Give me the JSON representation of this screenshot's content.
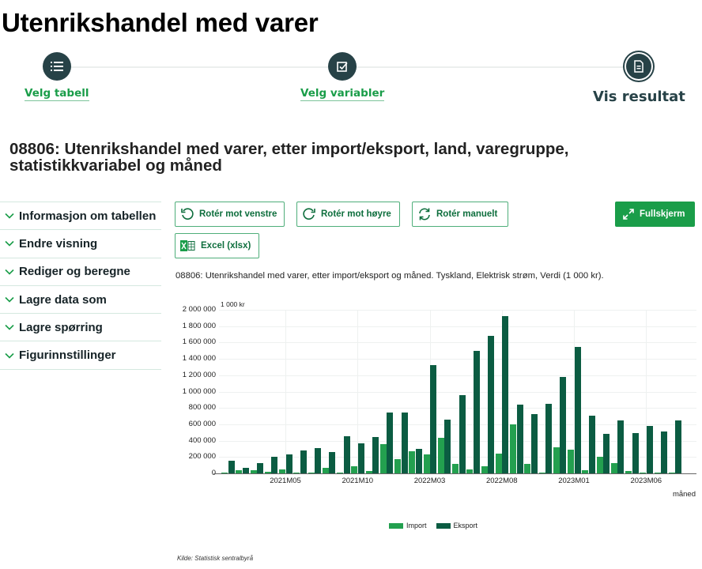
{
  "page": {
    "title": "Utenrikshandel med varer"
  },
  "stepper": {
    "steps": [
      {
        "label": "Velg tabell",
        "icon": "list-icon",
        "state": "done"
      },
      {
        "label": "Velg variabler",
        "icon": "checkbox-icon",
        "state": "done"
      },
      {
        "label": "Vis resultat",
        "icon": "document-icon",
        "state": "current"
      }
    ]
  },
  "table": {
    "title": "08806: Utenrikshandel med varer, etter import/eksport, land, varegruppe, statistikkvariabel og måned"
  },
  "sidebar": {
    "items": [
      {
        "label": "Informasjon om tabellen"
      },
      {
        "label": "Endre visning"
      },
      {
        "label": "Rediger og beregne"
      },
      {
        "label": "Lagre data som"
      },
      {
        "label": "Lagre spørring"
      },
      {
        "label": "Figurinnstillinger"
      }
    ]
  },
  "toolbar": {
    "rotate_left": "Rotér mot venstre",
    "rotate_right": "Rotér mot høyre",
    "rotate_manual": "Rotér manuelt",
    "fullscreen": "Fullskjerm",
    "excel": "Excel (xlsx)"
  },
  "chart": {
    "caption": "08806: Utenrikshandel med varer, etter import/eksport og måned. Tyskland, Elektrisk strøm, Verdi (1 000 kr).",
    "source": "Kilde:  Statistisk sentralbyrå",
    "colors": {
      "import": "#23a04f",
      "eksport": "#0b5c42"
    }
  },
  "chart_data": {
    "type": "bar",
    "title": "08806: Utenrikshandel med varer, etter import/eksport og måned. Tyskland, Elektrisk strøm, Verdi (1 000 kr).",
    "xlabel": "måned",
    "ylabel": "1 000 kr",
    "ylim": [
      0,
      2000000
    ],
    "y_ticks": [
      "0",
      "200 000",
      "400 000",
      "600 000",
      "800 000",
      "1 000 000",
      "1 200 000",
      "1 400 000",
      "1 600 000",
      "1 800 000",
      "2 000 000"
    ],
    "x_tick_labels": [
      "2021M05",
      "2021M10",
      "2022M03",
      "2022M08",
      "2023M01",
      "2023M06"
    ],
    "grid": true,
    "legend_position": "bottom",
    "categories": [
      "2021M01",
      "2021M02",
      "2021M03",
      "2021M04",
      "2021M05",
      "2021M06",
      "2021M07",
      "2021M08",
      "2021M09",
      "2021M10",
      "2021M11",
      "2021M12",
      "2022M01",
      "2022M02",
      "2022M03",
      "2022M04",
      "2022M05",
      "2022M06",
      "2022M07",
      "2022M08",
      "2022M09",
      "2022M10",
      "2022M11",
      "2022M12",
      "2023M01",
      "2023M02",
      "2023M03",
      "2023M04",
      "2023M05",
      "2023M06",
      "2023M07",
      "2023M08"
    ],
    "series": [
      {
        "name": "Import",
        "values": [
          10000,
          40000,
          35000,
          15000,
          45000,
          5000,
          10000,
          65000,
          10000,
          90000,
          28000,
          355000,
          175000,
          270000,
          235000,
          435000,
          120000,
          45000,
          85000,
          240000,
          600000,
          115000,
          5000,
          320000,
          290000,
          40000,
          200000,
          130000,
          30000,
          10000,
          10000,
          5000
        ]
      },
      {
        "name": "Eksport",
        "values": [
          150000,
          70000,
          125000,
          205000,
          230000,
          285000,
          305000,
          265000,
          455000,
          365000,
          440000,
          745000,
          740000,
          300000,
          1320000,
          660000,
          960000,
          1500000,
          1680000,
          1920000,
          840000,
          725000,
          850000,
          1175000,
          1550000,
          710000,
          480000,
          645000,
          495000,
          580000,
          515000,
          650000
        ]
      }
    ]
  }
}
